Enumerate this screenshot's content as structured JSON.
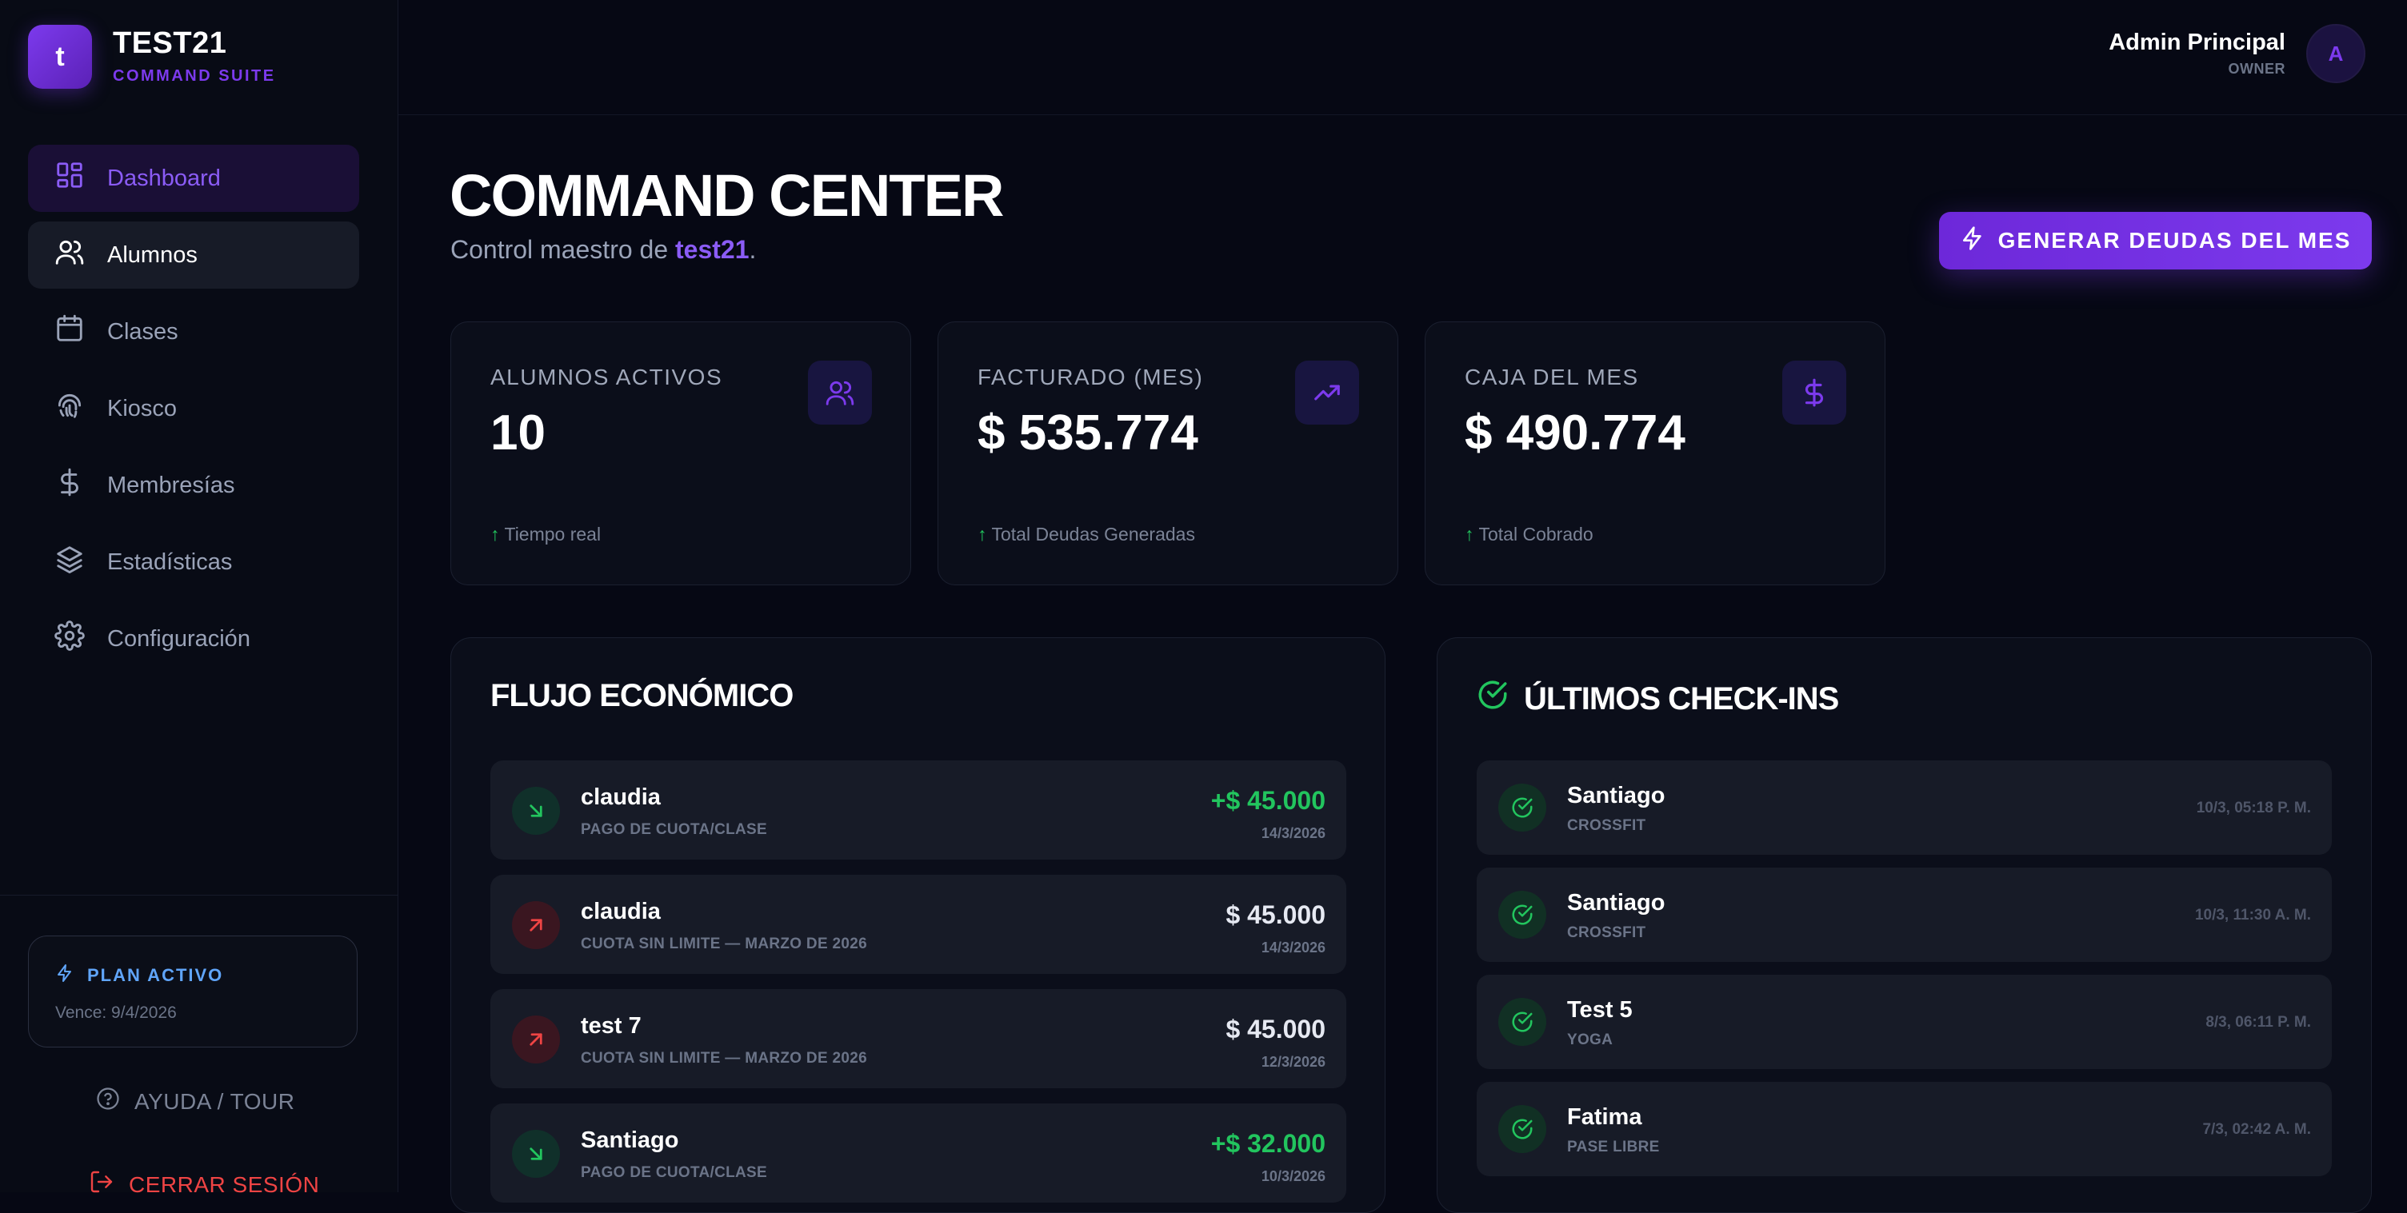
{
  "brand": {
    "logo_letter": "t",
    "name": "TEST21",
    "subtitle": "COMMAND SUITE",
    "accent": "#7c3aed"
  },
  "sidebar": {
    "items": [
      {
        "label": "Dashboard",
        "icon": "dashboard-icon",
        "state": "active"
      },
      {
        "label": "Alumnos",
        "icon": "users-icon",
        "state": "hover"
      },
      {
        "label": "Clases",
        "icon": "calendar-icon",
        "state": "default"
      },
      {
        "label": "Kiosco",
        "icon": "fingerprint-icon",
        "state": "default"
      },
      {
        "label": "Membresías",
        "icon": "dollar-icon",
        "state": "default"
      },
      {
        "label": "Estadísticas",
        "icon": "layers-icon",
        "state": "default"
      },
      {
        "label": "Configuración",
        "icon": "gear-icon",
        "state": "default"
      }
    ],
    "plan": {
      "title": "PLAN ACTIVO",
      "expires": "Vence: 9/4/2026",
      "icon": "bolt-icon"
    },
    "help_label": "AYUDA / TOUR",
    "logout_label": "CERRAR SESIÓN"
  },
  "header": {
    "user_name": "Admin Principal",
    "user_role": "OWNER",
    "avatar_letter": "A"
  },
  "page": {
    "title": "COMMAND CENTER",
    "subtitle_prefix": "Control maestro de ",
    "subtitle_highlight": "test21",
    "subtitle_suffix": ".",
    "generate_button": "GENERAR DEUDAS DEL MES"
  },
  "stats": [
    {
      "label": "ALUMNOS ACTIVOS",
      "value": "10",
      "foot": "Tiempo real",
      "icon": "users-icon"
    },
    {
      "label": "FACTURADO (MES)",
      "value": "$ 535.774",
      "foot": "Total Deudas Generadas",
      "icon": "trending-up-icon"
    },
    {
      "label": "CAJA DEL MES",
      "value": "$ 490.774",
      "foot": "Total Cobrado",
      "icon": "dollar-icon"
    }
  ],
  "cashflow": {
    "title": "FLUJO ECONÓMICO",
    "rows": [
      {
        "name": "claudia",
        "desc": "PAGO DE CUOTA/CLASE",
        "amount": "+$ 45.000",
        "date": "14/3/2026",
        "direction": "in"
      },
      {
        "name": "claudia",
        "desc": "CUOTA SIN LIMITE — MARZO DE 2026",
        "amount": "$ 45.000",
        "date": "14/3/2026",
        "direction": "out"
      },
      {
        "name": "test 7",
        "desc": "CUOTA SIN LIMITE — MARZO DE 2026",
        "amount": "$ 45.000",
        "date": "12/3/2026",
        "direction": "out"
      },
      {
        "name": "Santiago",
        "desc": "PAGO DE CUOTA/CLASE",
        "amount": "+$ 32.000",
        "date": "10/3/2026",
        "direction": "in"
      }
    ]
  },
  "checkins": {
    "title": "ÚLTIMOS CHECK-INS",
    "rows": [
      {
        "name": "Santiago",
        "class": "CROSSFIT",
        "time": "10/3, 05:18 P. M."
      },
      {
        "name": "Santiago",
        "class": "CROSSFIT",
        "time": "10/3, 11:30 A. M."
      },
      {
        "name": "Test 5",
        "class": "YOGA",
        "time": "8/3, 06:11 P. M."
      },
      {
        "name": "Fatima",
        "class": "PASE LIBRE",
        "time": "7/3, 02:42 A. M."
      }
    ]
  }
}
